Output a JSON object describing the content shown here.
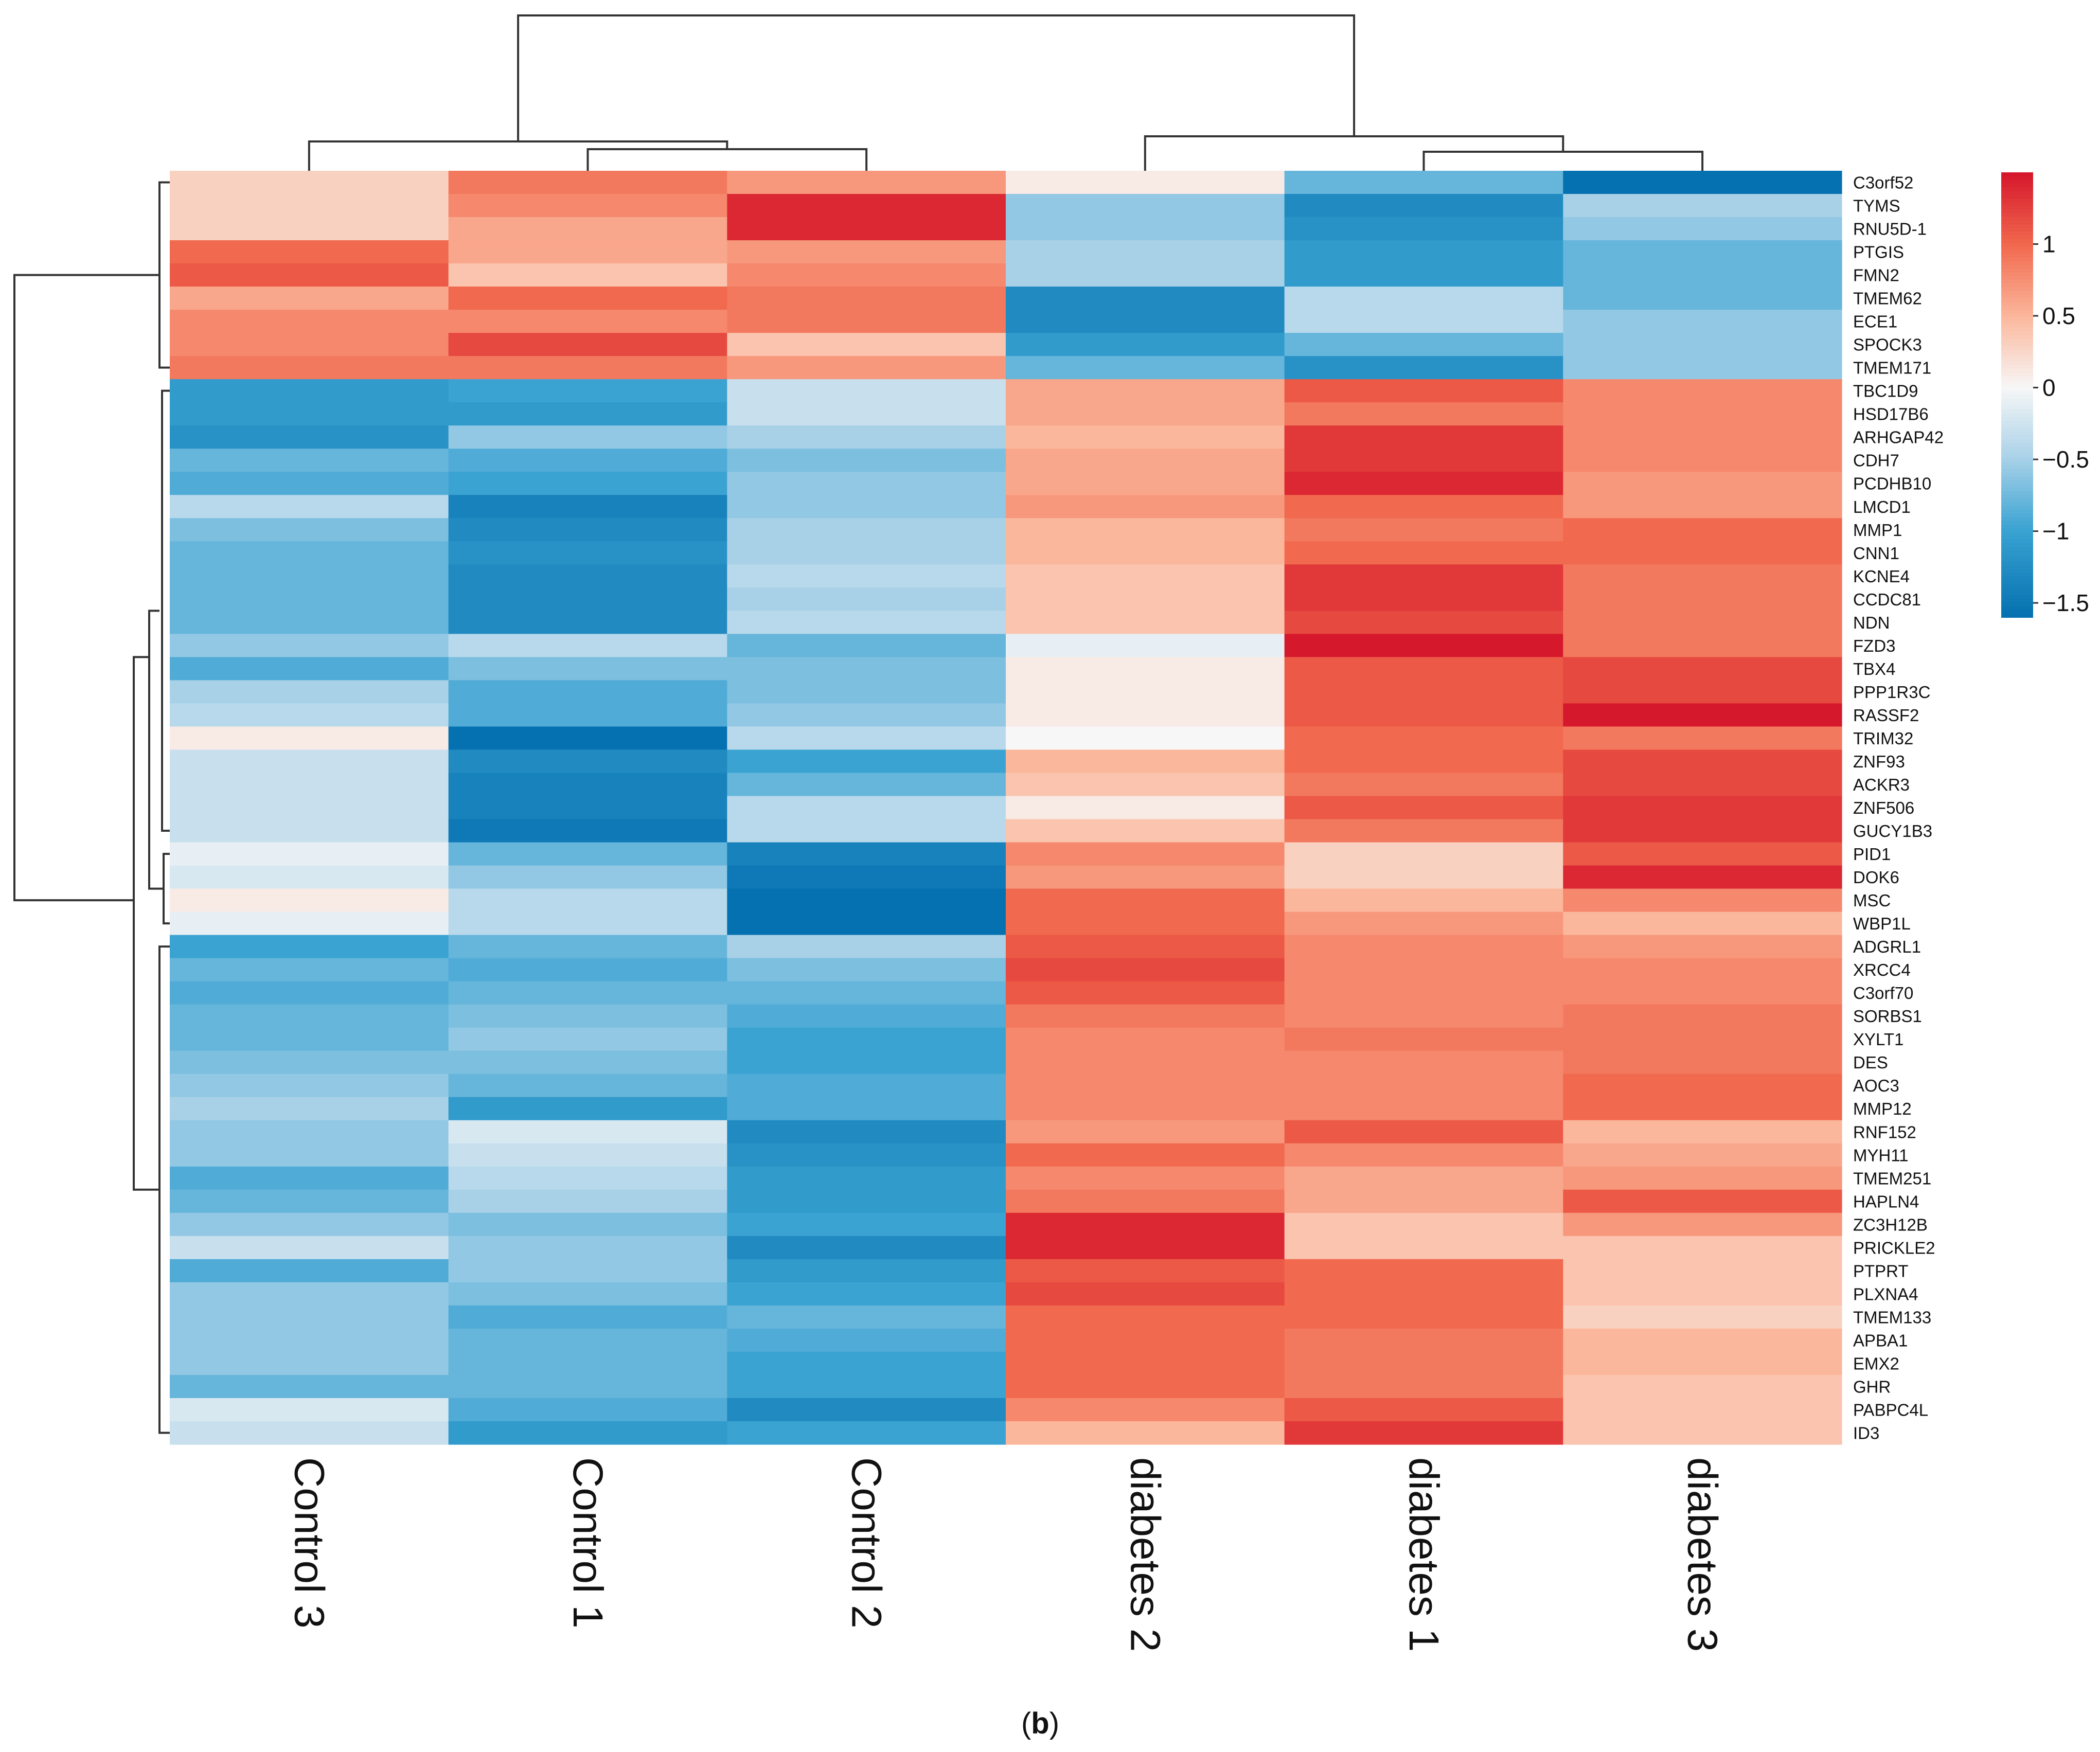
{
  "chart_data": {
    "type": "heatmap",
    "title": "",
    "caption_open": "(",
    "caption_letter": "b",
    "caption_close": ")",
    "columns": [
      "Control 3",
      "Control 1",
      "Control 2",
      "diabetes 2",
      "diabetes 1",
      "diabetes 3"
    ],
    "rows": [
      "C3orf52",
      "TYMS",
      "RNU5D-1",
      "PTGIS",
      "FMN2",
      "TMEM62",
      "ECE1",
      "SPOCK3",
      "TMEM171",
      "TBC1D9",
      "HSD17B6",
      "ARHGAP42",
      "CDH7",
      "PCDHB10",
      "LMCD1",
      "MMP1",
      "CNN1",
      "KCNE4",
      "CCDC81",
      "NDN",
      "FZD3",
      "TBX4",
      "PPP1R3C",
      "RASSF2",
      "TRIM32",
      "ZNF93",
      "ACKR3",
      "ZNF506",
      "GUCY1B3",
      "PID1",
      "DOK6",
      "MSC",
      "WBP1L",
      "ADGRL1",
      "XRCC4",
      "C3orf70",
      "SORBS1",
      "XYLT1",
      "DES",
      "AOC3",
      "MMP12",
      "RNF152",
      "MYH11",
      "TMEM251",
      "HAPLN4",
      "ZC3H12B",
      "PRICKLE2",
      "PTPRT",
      "PLXNA4",
      "TMEM133",
      "APBA1",
      "EMX2",
      "GHR",
      "PABPC4L",
      "ID3"
    ],
    "values": [
      [
        0.3,
        0.9,
        0.7,
        0.1,
        -0.8,
        -1.6
      ],
      [
        0.3,
        0.8,
        1.4,
        -0.6,
        -1.3,
        -0.5
      ],
      [
        0.3,
        0.6,
        1.4,
        -0.6,
        -1.2,
        -0.6
      ],
      [
        1.0,
        0.6,
        0.7,
        -0.5,
        -1.1,
        -0.8
      ],
      [
        1.1,
        0.4,
        0.8,
        -0.5,
        -1.1,
        -0.8
      ],
      [
        0.6,
        1.0,
        0.9,
        -1.3,
        -0.4,
        -0.8
      ],
      [
        0.8,
        0.8,
        0.9,
        -1.3,
        -0.4,
        -0.6
      ],
      [
        0.8,
        1.2,
        0.4,
        -1.1,
        -0.8,
        -0.6
      ],
      [
        0.9,
        0.9,
        0.7,
        -0.8,
        -1.2,
        -0.6
      ],
      [
        -1.1,
        -1.0,
        -0.3,
        0.6,
        1.1,
        0.8
      ],
      [
        -1.1,
        -1.1,
        -0.3,
        0.6,
        0.9,
        0.8
      ],
      [
        -1.2,
        -0.6,
        -0.5,
        0.5,
        1.3,
        0.8
      ],
      [
        -0.8,
        -0.9,
        -0.7,
        0.6,
        1.3,
        0.8
      ],
      [
        -0.9,
        -1.0,
        -0.6,
        0.6,
        1.4,
        0.7
      ],
      [
        -0.4,
        -1.4,
        -0.6,
        0.7,
        1.0,
        0.7
      ],
      [
        -0.7,
        -1.3,
        -0.5,
        0.5,
        0.9,
        1.0
      ],
      [
        -0.8,
        -1.2,
        -0.5,
        0.5,
        1.0,
        1.0
      ],
      [
        -0.8,
        -1.3,
        -0.4,
        0.4,
        1.3,
        0.9
      ],
      [
        -0.8,
        -1.3,
        -0.5,
        0.4,
        1.3,
        0.9
      ],
      [
        -0.8,
        -1.3,
        -0.4,
        0.4,
        1.2,
        0.9
      ],
      [
        -0.6,
        -0.4,
        -0.8,
        -0.1,
        1.5,
        0.9
      ],
      [
        -0.9,
        -0.7,
        -0.7,
        0.1,
        1.1,
        1.2
      ],
      [
        -0.5,
        -0.9,
        -0.7,
        0.1,
        1.1,
        1.2
      ],
      [
        -0.4,
        -0.9,
        -0.6,
        0.1,
        1.1,
        1.5
      ],
      [
        0.1,
        -1.6,
        -0.4,
        0.0,
        1.0,
        0.9
      ],
      [
        -0.3,
        -1.3,
        -1.0,
        0.5,
        1.0,
        1.2
      ],
      [
        -0.3,
        -1.4,
        -0.8,
        0.4,
        0.9,
        1.2
      ],
      [
        -0.3,
        -1.4,
        -0.4,
        0.1,
        1.1,
        1.3
      ],
      [
        -0.3,
        -1.5,
        -0.4,
        0.4,
        0.9,
        1.3
      ],
      [
        -0.1,
        -0.8,
        -1.4,
        0.8,
        0.3,
        1.1
      ],
      [
        -0.2,
        -0.6,
        -1.5,
        0.7,
        0.3,
        1.4
      ],
      [
        0.1,
        -0.4,
        -1.6,
        1.0,
        0.5,
        0.8
      ],
      [
        -0.1,
        -0.4,
        -1.6,
        1.0,
        0.7,
        0.5
      ],
      [
        -1.0,
        -0.8,
        -0.5,
        1.1,
        0.8,
        0.7
      ],
      [
        -0.8,
        -0.9,
        -0.7,
        1.2,
        0.8,
        0.8
      ],
      [
        -0.9,
        -0.8,
        -0.8,
        1.1,
        0.8,
        0.8
      ],
      [
        -0.8,
        -0.7,
        -0.9,
        0.9,
        0.8,
        0.9
      ],
      [
        -0.8,
        -0.6,
        -1.0,
        0.8,
        0.9,
        0.9
      ],
      [
        -0.7,
        -0.7,
        -1.0,
        0.8,
        0.8,
        0.9
      ],
      [
        -0.6,
        -0.8,
        -0.9,
        0.8,
        0.8,
        1.0
      ],
      [
        -0.5,
        -1.1,
        -0.9,
        0.8,
        0.8,
        1.0
      ],
      [
        -0.6,
        -0.2,
        -1.3,
        0.7,
        1.1,
        0.5
      ],
      [
        -0.6,
        -0.3,
        -1.2,
        1.0,
        0.8,
        0.6
      ],
      [
        -0.9,
        -0.4,
        -1.1,
        0.8,
        0.6,
        0.7
      ],
      [
        -0.8,
        -0.5,
        -1.1,
        0.9,
        0.6,
        1.1
      ],
      [
        -0.6,
        -0.7,
        -1.0,
        1.4,
        0.4,
        0.7
      ],
      [
        -0.3,
        -0.6,
        -1.3,
        1.4,
        0.4,
        0.4
      ],
      [
        -0.9,
        -0.6,
        -1.1,
        1.1,
        1.0,
        0.4
      ],
      [
        -0.6,
        -0.7,
        -1.0,
        1.2,
        1.0,
        0.4
      ],
      [
        -0.6,
        -0.9,
        -0.8,
        1.0,
        1.0,
        0.3
      ],
      [
        -0.6,
        -0.8,
        -0.9,
        1.0,
        0.9,
        0.5
      ],
      [
        -0.6,
        -0.8,
        -1.0,
        1.0,
        0.9,
        0.5
      ],
      [
        -0.8,
        -0.8,
        -1.0,
        1.0,
        0.9,
        0.4
      ],
      [
        -0.2,
        -0.9,
        -1.3,
        0.8,
        1.1,
        0.4
      ],
      [
        -0.3,
        -1.1,
        -1.0,
        0.5,
        1.3,
        0.4
      ]
    ],
    "color_scale": {
      "min": -1.6,
      "max": 1.5,
      "stops": [
        {
          "value": -1.6,
          "color": "#0571b0"
        },
        {
          "value": -1.0,
          "color": "#3aa3d2"
        },
        {
          "value": -0.5,
          "color": "#a8d1e8"
        },
        {
          "value": 0.0,
          "color": "#f7f7f7"
        },
        {
          "value": 0.5,
          "color": "#fbb79c"
        },
        {
          "value": 1.0,
          "color": "#f1694e"
        },
        {
          "value": 1.5,
          "color": "#d6182c"
        }
      ]
    },
    "legend": {
      "ticks": [
        1,
        0.5,
        0,
        -0.5,
        -1,
        -1.5
      ],
      "tick_labels": [
        "1",
        "0.5",
        "0",
        "−0.5",
        "−1",
        "−1.5"
      ],
      "placement": "right"
    },
    "column_dendrogram": "shown above columns: Controls cluster vs diabetes cluster",
    "row_dendrogram": "shown left of rows",
    "xlabel": "",
    "ylabel": ""
  }
}
